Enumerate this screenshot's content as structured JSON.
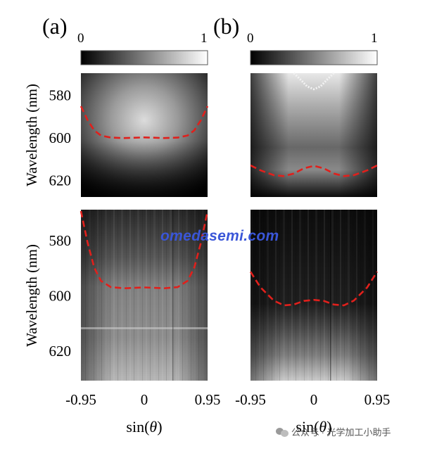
{
  "figure": {
    "panel_labels": [
      "(a)",
      "(b)"
    ],
    "colorbar": {
      "min_label": "0",
      "max_label": "1",
      "colormap": "grayscale"
    },
    "ylabel": "Wavelength (nm)",
    "xlabel_prefix": "sin(",
    "xlabel_var": "θ",
    "xlabel_suffix": ")",
    "x_ticks": [
      "-0.95",
      "0",
      "0.95"
    ],
    "y_ticks_top": [
      "580",
      "600",
      "620"
    ],
    "y_ticks_bottom": [
      "580",
      "600",
      "620"
    ]
  },
  "watermark": "omedasemi.com",
  "footer": {
    "text": "公众号 · 光学加工小助手",
    "icon": "wechat-icon"
  },
  "colors": {
    "dashed_fit": "#e0201c",
    "watermark": "#3a56d8"
  },
  "chart_data": [
    {
      "type": "heatmap",
      "panel": "(a)",
      "row": "top",
      "colorbar": [
        0,
        1
      ],
      "xlim": [
        -0.95,
        0.95
      ],
      "ylim": [
        628,
        570
      ],
      "y_ticks": [
        580,
        600,
        620
      ],
      "dashed_curve": {
        "x": [
          -0.95,
          -0.85,
          -0.75,
          -0.65,
          -0.5,
          -0.3,
          0,
          0.3,
          0.5,
          0.65,
          0.75,
          0.85,
          0.95
        ],
        "y": [
          585.5,
          592,
          596.8,
          599.2,
          600.2,
          600.4,
          600.1,
          600.4,
          600.2,
          599.2,
          596.8,
          592,
          585.5
        ]
      }
    },
    {
      "type": "heatmap",
      "panel": "(b)",
      "row": "top",
      "colorbar": [
        0,
        1
      ],
      "xlim": [
        -0.95,
        0.95
      ],
      "ylim": [
        628,
        570
      ],
      "y_ticks": [
        580,
        600,
        620
      ],
      "dashed_curve": {
        "x": [
          -0.95,
          -0.8,
          -0.6,
          -0.45,
          -0.3,
          -0.15,
          0,
          0.15,
          0.3,
          0.45,
          0.6,
          0.8,
          0.95
        ],
        "y": [
          613.2,
          615.5,
          617.8,
          618.2,
          617,
          614.6,
          613.4,
          614.6,
          617,
          618.2,
          617.8,
          615.5,
          613.2
        ]
      },
      "upper_branch": {
        "x": [
          -0.3,
          -0.2,
          -0.1,
          0,
          0.1,
          0.2,
          0.3
        ],
        "y": [
          570,
          573,
          576.2,
          577.5,
          576.2,
          573,
          570
        ]
      }
    },
    {
      "type": "heatmap",
      "panel": "(a)",
      "row": "bottom",
      "xlim": [
        -0.95,
        0.95
      ],
      "ylim": [
        631,
        569
      ],
      "x_ticks": [
        -0.95,
        0,
        0.95
      ],
      "y_ticks": [
        580,
        600,
        620
      ],
      "dashed_curve": {
        "x": [
          -0.95,
          -0.85,
          -0.75,
          -0.65,
          -0.5,
          -0.3,
          0,
          0.3,
          0.5,
          0.65,
          0.75,
          0.85,
          0.95
        ],
        "y": [
          569.5,
          581,
          590,
          594.8,
          597.1,
          597.5,
          597.2,
          597.5,
          597.1,
          594.8,
          590,
          581,
          569.5
        ]
      }
    },
    {
      "type": "heatmap",
      "panel": "(b)",
      "row": "bottom",
      "xlim": [
        -0.95,
        0.95
      ],
      "ylim": [
        631,
        569
      ],
      "x_ticks": [
        -0.95,
        0,
        0.95
      ],
      "y_ticks": [
        580,
        600,
        620
      ],
      "dashed_curve": {
        "x": [
          -0.95,
          -0.8,
          -0.6,
          -0.45,
          -0.3,
          -0.15,
          0,
          0.15,
          0.3,
          0.45,
          0.6,
          0.8,
          0.95
        ],
        "y": [
          591.5,
          597.2,
          602,
          603.7,
          603.4,
          602.1,
          601.7,
          602.1,
          603.4,
          603.7,
          602,
          597.2,
          591.5
        ]
      }
    }
  ]
}
